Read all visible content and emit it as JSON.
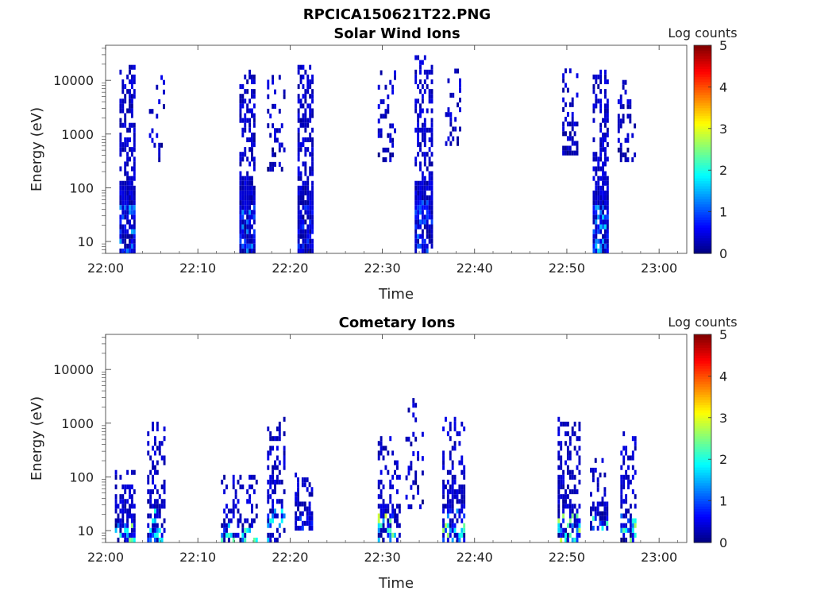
{
  "figure_title": "RPCICA150621T22.PNG",
  "chart_data": [
    {
      "type": "heatmap",
      "title": "Solar Wind Ions",
      "xlabel": "Time",
      "ylabel": "Energy (eV)",
      "x_ticks": [
        "22:00",
        "22:10",
        "22:20",
        "22:30",
        "22:40",
        "22:50",
        "23:00"
      ],
      "x_range_minutes": [
        0,
        63
      ],
      "y_ticks": [
        "10",
        "100",
        "1000",
        "10000"
      ],
      "y_scale": "log",
      "y_range": [
        6,
        45000
      ],
      "colorbar_label": "Log counts",
      "colorbar_ticks": [
        "0",
        "1",
        "2",
        "3",
        "4",
        "5"
      ],
      "colorbar_range": [
        0,
        5
      ],
      "colormap": [
        "#00007f",
        "#0000ff",
        "#007fff",
        "#00ffff",
        "#7fff7f",
        "#ffff00",
        "#ff7f00",
        "#ff0000",
        "#7f0000"
      ],
      "bursts": [
        {
          "t_min": 1.5,
          "t_max": 3.2,
          "e_min": 6,
          "e_max": 16000,
          "density": 0.7,
          "core_max_log": 1.6
        },
        {
          "t_min": 4.7,
          "t_max": 6.3,
          "e_min": 300,
          "e_max": 15000,
          "density": 0.2,
          "core_max_log": 0.5
        },
        {
          "t_min": 14.5,
          "t_max": 16.2,
          "e_min": 6,
          "e_max": 15000,
          "density": 0.7,
          "core_max_log": 1.4
        },
        {
          "t_min": 17.5,
          "t_max": 19.5,
          "e_min": 200,
          "e_max": 12000,
          "density": 0.3,
          "core_max_log": 0.5
        },
        {
          "t_min": 20.8,
          "t_max": 22.5,
          "e_min": 6,
          "e_max": 17000,
          "density": 0.7,
          "core_max_log": 1.0
        },
        {
          "t_min": 29.5,
          "t_max": 31.5,
          "e_min": 300,
          "e_max": 13000,
          "density": 0.3,
          "core_max_log": 0.5
        },
        {
          "t_min": 33.5,
          "t_max": 35.3,
          "e_min": 6,
          "e_max": 25000,
          "density": 0.7,
          "core_max_log": 1.2
        },
        {
          "t_min": 36.8,
          "t_max": 38.5,
          "e_min": 600,
          "e_max": 15000,
          "density": 0.35,
          "core_max_log": 0.5
        },
        {
          "t_min": 49.5,
          "t_max": 51.2,
          "e_min": 400,
          "e_max": 16000,
          "density": 0.3,
          "core_max_log": 0.5
        },
        {
          "t_min": 52.8,
          "t_max": 54.5,
          "e_min": 6,
          "e_max": 13000,
          "density": 0.7,
          "core_max_log": 1.7
        },
        {
          "t_min": 55.5,
          "t_max": 57.3,
          "e_min": 300,
          "e_max": 12000,
          "density": 0.3,
          "core_max_log": 0.5
        }
      ]
    },
    {
      "type": "heatmap",
      "title": "Cometary Ions",
      "xlabel": "Time",
      "ylabel": "Energy (eV)",
      "x_ticks": [
        "22:00",
        "22:10",
        "22:20",
        "22:30",
        "22:40",
        "22:50",
        "23:00"
      ],
      "x_range_minutes": [
        0,
        63
      ],
      "y_ticks": [
        "10",
        "100",
        "1000",
        "10000"
      ],
      "y_scale": "log",
      "y_range": [
        6,
        45000
      ],
      "colorbar_label": "Log counts",
      "colorbar_ticks": [
        "0",
        "1",
        "2",
        "3",
        "4",
        "5"
      ],
      "colorbar_range": [
        0,
        5
      ],
      "colormap": [
        "#00007f",
        "#0000ff",
        "#007fff",
        "#00ffff",
        "#7fff7f",
        "#ffff00",
        "#ff7f00",
        "#ff0000",
        "#7f0000"
      ],
      "bursts": [
        {
          "t_min": 1.0,
          "t_max": 3.2,
          "e_min": 6,
          "e_max": 110,
          "density": 0.6,
          "core_max_log": 2.8
        },
        {
          "t_min": 4.5,
          "t_max": 6.5,
          "e_min": 6,
          "e_max": 1000,
          "density": 0.45,
          "core_max_log": 2.2
        },
        {
          "t_min": 12.5,
          "t_max": 16.5,
          "e_min": 6,
          "e_max": 90,
          "density": 0.4,
          "core_max_log": 2.5
        },
        {
          "t_min": 17.5,
          "t_max": 19.5,
          "e_min": 6,
          "e_max": 1200,
          "density": 0.45,
          "core_max_log": 2.0
        },
        {
          "t_min": 20.5,
          "t_max": 22.5,
          "e_min": 10,
          "e_max": 100,
          "density": 0.45,
          "core_max_log": 1.0
        },
        {
          "t_min": 29.5,
          "t_max": 31.8,
          "e_min": 6,
          "e_max": 500,
          "density": 0.45,
          "core_max_log": 2.9
        },
        {
          "t_min": 32.5,
          "t_max": 34.5,
          "e_min": 25,
          "e_max": 2500,
          "density": 0.15,
          "core_max_log": 0.5
        },
        {
          "t_min": 36.5,
          "t_max": 38.8,
          "e_min": 6,
          "e_max": 1200,
          "density": 0.5,
          "core_max_log": 2.8
        },
        {
          "t_min": 49.0,
          "t_max": 51.3,
          "e_min": 6,
          "e_max": 1100,
          "density": 0.5,
          "core_max_log": 2.9
        },
        {
          "t_min": 52.5,
          "t_max": 54.5,
          "e_min": 10,
          "e_max": 250,
          "density": 0.45,
          "core_max_log": 2.4
        },
        {
          "t_min": 55.8,
          "t_max": 57.5,
          "e_min": 6,
          "e_max": 650,
          "density": 0.5,
          "core_max_log": 2.7
        }
      ]
    }
  ]
}
